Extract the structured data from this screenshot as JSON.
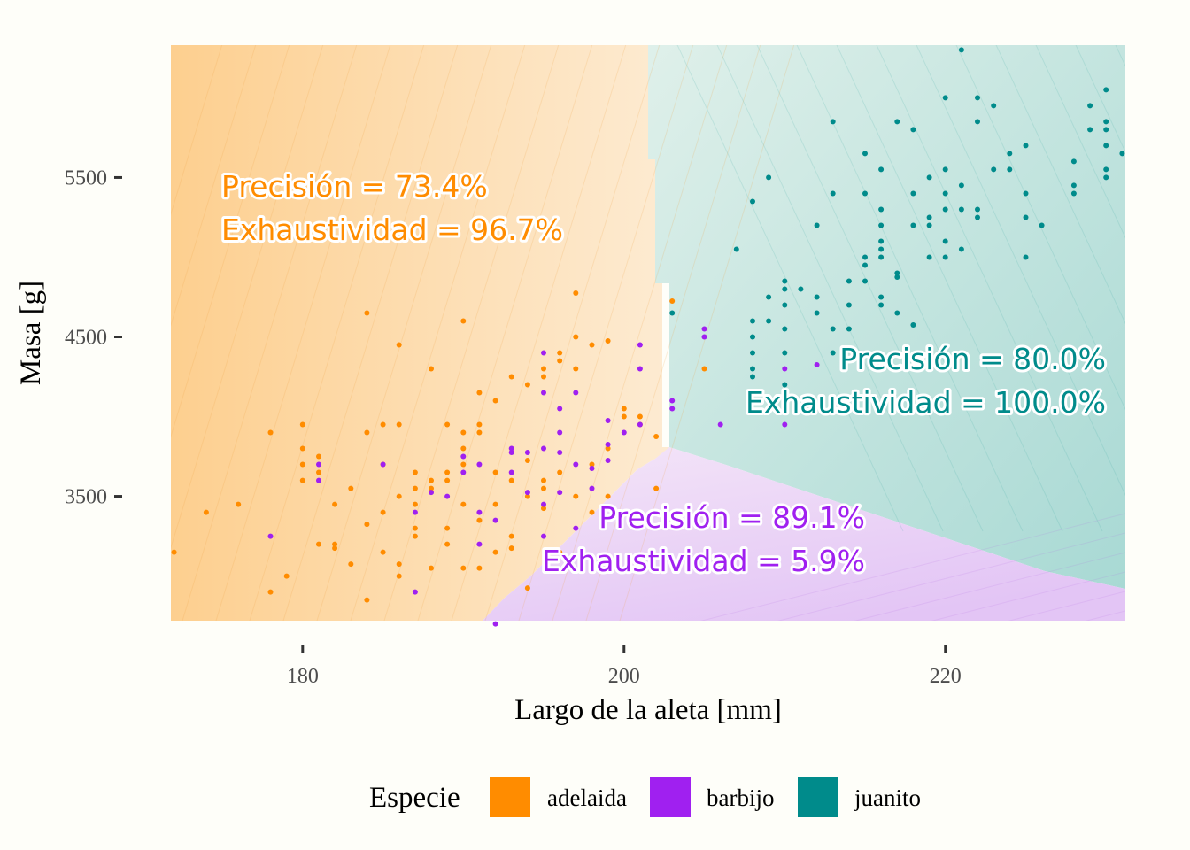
{
  "chart_data": {
    "type": "scatter",
    "title": "",
    "xlabel": "Largo de la aleta [mm]",
    "ylabel": "Masa [g]",
    "xlim": [
      171.8,
      231.2
    ],
    "ylim": [
      2720,
      6330
    ],
    "x_ticks": [
      180,
      200,
      220
    ],
    "y_ticks": [
      3500,
      4500,
      5500
    ],
    "x_tick_labels": [
      "180",
      "200",
      "220"
    ],
    "y_tick_labels": [
      "3500",
      "4500",
      "5500"
    ],
    "grid": false,
    "legend": {
      "title": "Especie",
      "position": "bottom",
      "entries": [
        {
          "label": "adelaida",
          "color": "#ff8c00"
        },
        {
          "label": "barbijo",
          "color": "#a020f0"
        },
        {
          "label": "juanito",
          "color": "#008b8b"
        }
      ]
    },
    "annotations": [
      {
        "species": "adelaida",
        "lines": [
          "Precisión = 73.4%",
          "Exhaustividad = 96.7%"
        ],
        "color": "#ff8c00"
      },
      {
        "species": "juanito",
        "lines": [
          "Precisión = 80.0%",
          "Exhaustividad = 100.0%"
        ],
        "color": "#008b8b"
      },
      {
        "species": "barbijo",
        "lines": [
          "Precisión = 89.1%",
          "Exhaustividad = 5.9%"
        ],
        "color": "#a020f0"
      }
    ],
    "series": [
      {
        "name": "adelaida",
        "color": "#ff8c00",
        "points": [
          [
            172,
            3150
          ],
          [
            174,
            3400
          ],
          [
            176,
            3450
          ],
          [
            178,
            2900
          ],
          [
            178,
            3900
          ],
          [
            179,
            3000
          ],
          [
            180,
            3950
          ],
          [
            180,
            3800
          ],
          [
            180,
            3600
          ],
          [
            180,
            3700
          ],
          [
            181,
            3750
          ],
          [
            181,
            3200
          ],
          [
            181,
            3650
          ],
          [
            182,
            3450
          ],
          [
            182,
            3175
          ],
          [
            182,
            3200
          ],
          [
            183,
            3550
          ],
          [
            183,
            3075
          ],
          [
            184,
            3900
          ],
          [
            184,
            4650
          ],
          [
            184,
            3325
          ],
          [
            184,
            2850
          ],
          [
            185,
            3700
          ],
          [
            185,
            3950
          ],
          [
            185,
            3150
          ],
          [
            185,
            3400
          ],
          [
            186,
            3500
          ],
          [
            186,
            3950
          ],
          [
            186,
            4450
          ],
          [
            186,
            3075
          ],
          [
            186,
            3000
          ],
          [
            187,
            3300
          ],
          [
            187,
            3450
          ],
          [
            187,
            3650
          ],
          [
            187,
            3250
          ],
          [
            187,
            3550
          ],
          [
            188,
            3600
          ],
          [
            188,
            4300
          ],
          [
            188,
            3050
          ],
          [
            188,
            3550
          ],
          [
            189,
            3950
          ],
          [
            189,
            3600
          ],
          [
            189,
            3300
          ],
          [
            189,
            3200
          ],
          [
            189,
            3650
          ],
          [
            190,
            4600
          ],
          [
            190,
            3900
          ],
          [
            190,
            3700
          ],
          [
            190,
            3450
          ],
          [
            190,
            3800
          ],
          [
            191,
            4150
          ],
          [
            191,
            3950
          ],
          [
            191,
            3050
          ],
          [
            191,
            3900
          ],
          [
            191,
            3350
          ],
          [
            192,
            4100
          ],
          [
            192,
            3650
          ],
          [
            192,
            3450
          ],
          [
            193,
            4250
          ],
          [
            193,
            3600
          ],
          [
            193,
            3250
          ],
          [
            193,
            3175
          ],
          [
            194,
            4200
          ],
          [
            194,
            3500
          ],
          [
            194,
            3725
          ],
          [
            195,
            4300
          ],
          [
            195,
            4250
          ],
          [
            195,
            3600
          ],
          [
            195,
            3425
          ],
          [
            196,
            4400
          ],
          [
            196,
            4350
          ],
          [
            196,
            3650
          ],
          [
            197,
            4775
          ],
          [
            197,
            4500
          ],
          [
            197,
            4300
          ],
          [
            197,
            3500
          ],
          [
            198,
            4450
          ],
          [
            198,
            3700
          ],
          [
            199,
            4475
          ],
          [
            199,
            3800
          ],
          [
            200,
            4000
          ],
          [
            200,
            4050
          ],
          [
            201,
            3950
          ],
          [
            201,
            4000
          ],
          [
            202,
            3550
          ],
          [
            202,
            3875
          ],
          [
            203,
            4725
          ],
          [
            205,
            4300
          ],
          [
            199,
            3500
          ],
          [
            198,
            3400
          ],
          [
            195,
            3550
          ],
          [
            194,
            2925
          ],
          [
            192,
            3150
          ],
          [
            196,
            3150
          ],
          [
            190,
            3050
          ]
        ]
      },
      {
        "name": "barbijo",
        "color": "#a020f0",
        "points": [
          [
            178,
            3250
          ],
          [
            181,
            3700
          ],
          [
            181,
            3600
          ],
          [
            185,
            3700
          ],
          [
            187,
            2900
          ],
          [
            187,
            3400
          ],
          [
            188,
            3525
          ],
          [
            189,
            3500
          ],
          [
            190,
            3650
          ],
          [
            190,
            3750
          ],
          [
            191,
            3700
          ],
          [
            191,
            3400
          ],
          [
            192,
            3350
          ],
          [
            192,
            2700
          ],
          [
            193,
            3800
          ],
          [
            193,
            3650
          ],
          [
            193,
            3775
          ],
          [
            194,
            3525
          ],
          [
            195,
            4400
          ],
          [
            195,
            4150
          ],
          [
            195,
            3800
          ],
          [
            195,
            3450
          ],
          [
            195,
            3250
          ],
          [
            196,
            4050
          ],
          [
            196,
            3900
          ],
          [
            196,
            3775
          ],
          [
            197,
            4150
          ],
          [
            197,
            3700
          ],
          [
            197,
            3300
          ],
          [
            198,
            3675
          ],
          [
            198,
            3550
          ],
          [
            199,
            3975
          ],
          [
            199,
            3825
          ],
          [
            199,
            3725
          ],
          [
            200,
            3900
          ],
          [
            201,
            4450
          ],
          [
            201,
            4300
          ],
          [
            201,
            3950
          ],
          [
            203,
            4100
          ],
          [
            203,
            4050
          ],
          [
            205,
            4550
          ],
          [
            205,
            4500
          ],
          [
            206,
            3950
          ],
          [
            210,
            4300
          ],
          [
            210,
            3950
          ],
          [
            212,
            4325
          ],
          [
            196,
            3525
          ],
          [
            194,
            3775
          ],
          [
            191,
            3200
          ]
        ]
      },
      {
        "name": "juanito",
        "color": "#008b8b",
        "points": [
          [
            203,
            4650
          ],
          [
            207,
            5050
          ],
          [
            208,
            4600
          ],
          [
            208,
            4500
          ],
          [
            208,
            4400
          ],
          [
            208,
            4300
          ],
          [
            208,
            4250
          ],
          [
            208,
            5350
          ],
          [
            209,
            4750
          ],
          [
            209,
            4600
          ],
          [
            209,
            5500
          ],
          [
            210,
            4800
          ],
          [
            210,
            4700
          ],
          [
            210,
            4550
          ],
          [
            210,
            4400
          ],
          [
            210,
            4200
          ],
          [
            210,
            4850
          ],
          [
            211,
            4800
          ],
          [
            212,
            4750
          ],
          [
            212,
            4650
          ],
          [
            212,
            5200
          ],
          [
            213,
            4550
          ],
          [
            213,
            4400
          ],
          [
            213,
            5400
          ],
          [
            213,
            5850
          ],
          [
            214,
            4850
          ],
          [
            214,
            4700
          ],
          [
            214,
            4550
          ],
          [
            215,
            5000
          ],
          [
            215,
            4950
          ],
          [
            215,
            4850
          ],
          [
            215,
            5400
          ],
          [
            215,
            5650
          ],
          [
            216,
            5100
          ],
          [
            216,
            5050
          ],
          [
            216,
            5000
          ],
          [
            216,
            4750
          ],
          [
            216,
            4700
          ],
          [
            216,
            5300
          ],
          [
            216,
            5200
          ],
          [
            216,
            5550
          ],
          [
            217,
            5850
          ],
          [
            217,
            4900
          ],
          [
            217,
            4875
          ],
          [
            217,
            4650
          ],
          [
            218,
            5800
          ],
          [
            218,
            5400
          ],
          [
            218,
            5200
          ],
          [
            218,
            4575
          ],
          [
            219,
            5250
          ],
          [
            219,
            5200
          ],
          [
            219,
            5500
          ],
          [
            219,
            5000
          ],
          [
            220,
            5550
          ],
          [
            220,
            5400
          ],
          [
            220,
            5300
          ],
          [
            220,
            5100
          ],
          [
            220,
            5000
          ],
          [
            220,
            6000
          ],
          [
            221,
            5050
          ],
          [
            221,
            5300
          ],
          [
            221,
            6300
          ],
          [
            221,
            5450
          ],
          [
            222,
            6000
          ],
          [
            222,
            5300
          ],
          [
            222,
            5250
          ],
          [
            222,
            5850
          ],
          [
            223,
            5550
          ],
          [
            223,
            5950
          ],
          [
            224,
            5550
          ],
          [
            224,
            5650
          ],
          [
            225,
            5700
          ],
          [
            225,
            5400
          ],
          [
            225,
            5250
          ],
          [
            225,
            5000
          ],
          [
            226,
            5200
          ],
          [
            228,
            5600
          ],
          [
            228,
            5450
          ],
          [
            228,
            5400
          ],
          [
            229,
            5800
          ],
          [
            229,
            5950
          ],
          [
            230,
            5800
          ],
          [
            230,
            5850
          ],
          [
            230,
            5700
          ],
          [
            230,
            5550
          ],
          [
            230,
            5500
          ],
          [
            230,
            6050
          ],
          [
            231,
            5650
          ]
        ]
      }
    ]
  }
}
